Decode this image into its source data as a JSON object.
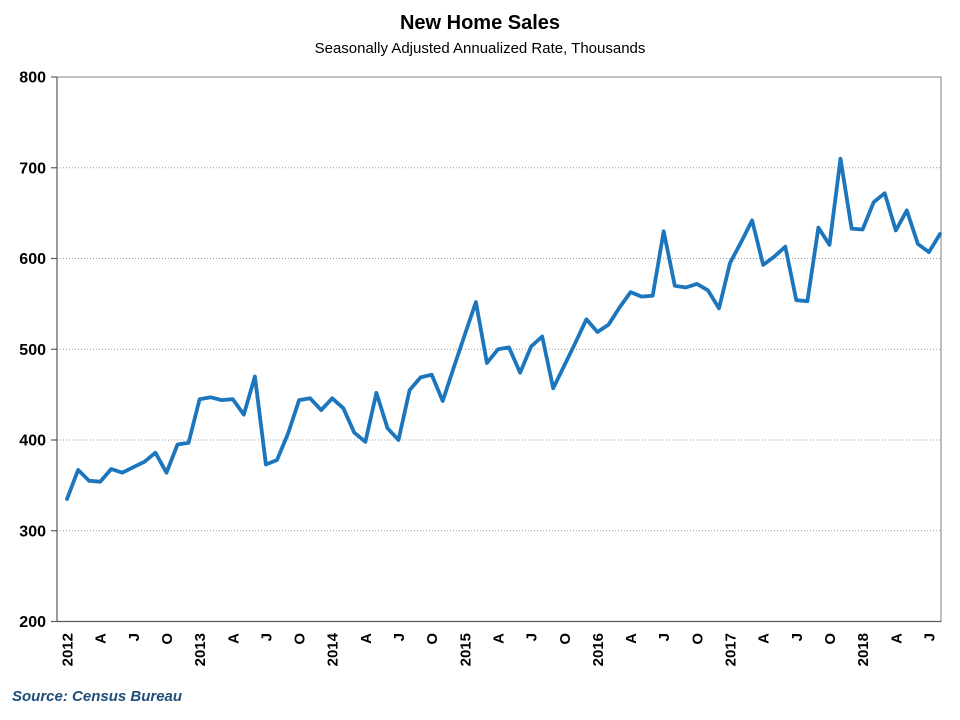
{
  "header": {
    "title": "New Home Sales",
    "subtitle": "Seasonally Adjusted Annualized Rate, Thousands"
  },
  "footer": {
    "source": "Source: Census Bureau"
  },
  "colors": {
    "line": "#1c76bd",
    "source_text": "#1f4e79",
    "grid": "#999999",
    "axis": "#595959",
    "border": "#808080",
    "text": "#000000"
  },
  "chart_data": {
    "type": "line",
    "title": "New Home Sales",
    "subtitle": "Seasonally Adjusted Annualized Rate, Thousands",
    "source": "Source: Census Bureau",
    "xlabel": "",
    "ylabel": "",
    "legend": "none",
    "grid": "horizontal-dotted",
    "frequency": "monthly",
    "x_start": "2012-01",
    "x_end": "2018-08",
    "ylim": [
      200,
      800
    ],
    "y_ticks": [
      200,
      300,
      400,
      500,
      600,
      700,
      800
    ],
    "x_tick_labels": [
      "2012",
      "A",
      "J",
      "O",
      "2013",
      "A",
      "J",
      "O",
      "2014",
      "A",
      "J",
      "O",
      "2015",
      "A",
      "J",
      "O",
      "2016",
      "A",
      "J",
      "O",
      "2017",
      "A",
      "J",
      "O",
      "2018",
      "A",
      "J"
    ],
    "x": [
      "2012-01",
      "2012-02",
      "2012-03",
      "2012-04",
      "2012-05",
      "2012-06",
      "2012-07",
      "2012-08",
      "2012-09",
      "2012-10",
      "2012-11",
      "2012-12",
      "2013-01",
      "2013-02",
      "2013-03",
      "2013-04",
      "2013-05",
      "2013-06",
      "2013-07",
      "2013-08",
      "2013-09",
      "2013-10",
      "2013-11",
      "2013-12",
      "2014-01",
      "2014-02",
      "2014-03",
      "2014-04",
      "2014-05",
      "2014-06",
      "2014-07",
      "2014-08",
      "2014-09",
      "2014-10",
      "2014-11",
      "2014-12",
      "2015-01",
      "2015-02",
      "2015-03",
      "2015-04",
      "2015-05",
      "2015-06",
      "2015-07",
      "2015-08",
      "2015-09",
      "2015-10",
      "2015-11",
      "2015-12",
      "2016-01",
      "2016-02",
      "2016-03",
      "2016-04",
      "2016-05",
      "2016-06",
      "2016-07",
      "2016-08",
      "2016-09",
      "2016-10",
      "2016-11",
      "2016-12",
      "2017-01",
      "2017-02",
      "2017-03",
      "2017-04",
      "2017-05",
      "2017-06",
      "2017-07",
      "2017-08",
      "2017-09",
      "2017-10",
      "2017-11",
      "2017-12",
      "2018-01",
      "2018-02",
      "2018-03",
      "2018-04",
      "2018-05",
      "2018-06",
      "2018-07",
      "2018-08"
    ],
    "series": [
      {
        "name": "New Home Sales (SAAR, thousands)",
        "color": "#1c76bd",
        "values": [
          335,
          367,
          355,
          354,
          368,
          364,
          370,
          376,
          386,
          364,
          395,
          397,
          445,
          447,
          444,
          445,
          428,
          470,
          373,
          378,
          407,
          444,
          446,
          433,
          446,
          435,
          408,
          398,
          452,
          413,
          400,
          455,
          469,
          472,
          443,
          480,
          516,
          552,
          485,
          500,
          502,
          474,
          503,
          514,
          457,
          482,
          507,
          533,
          519,
          527,
          546,
          563,
          558,
          559,
          630,
          570,
          568,
          572,
          565,
          545,
          595,
          618,
          642,
          593,
          602,
          613,
          554,
          553,
          634,
          615,
          710,
          633,
          632,
          662,
          672,
          631,
          653,
          616,
          607,
          627
        ]
      }
    ]
  }
}
